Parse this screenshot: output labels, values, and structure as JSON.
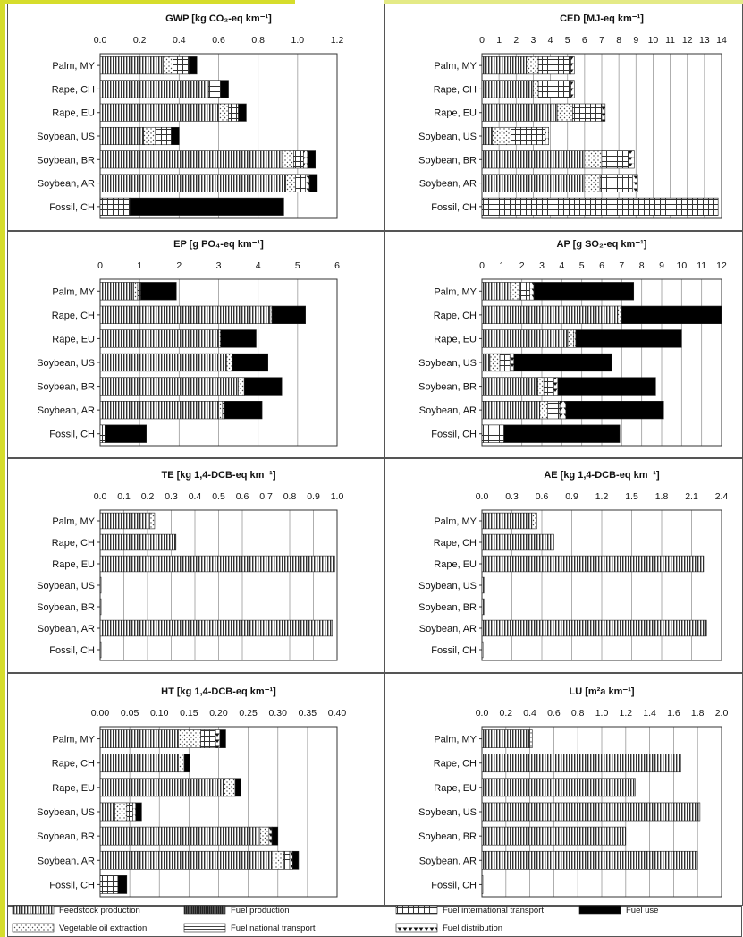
{
  "frame": {
    "accent": "#d6dd2b",
    "panel_border": "#555555",
    "grid": "#9a9a9a"
  },
  "patterns": {
    "feedstock": "vertical-hatch",
    "vegoil": "dots",
    "fuelprod": "dense-hatch",
    "fuelnat": "horizontal-lines",
    "fuelint": "grid",
    "fueldist": "triangles",
    "fueluse": "solid"
  },
  "legend": [
    {
      "key": "feedstock",
      "label": "Feedstock production"
    },
    {
      "key": "vegoil",
      "label": "Vegetable oil extraction"
    },
    {
      "key": "fuelprod",
      "label": "Fuel production"
    },
    {
      "key": "fuelnat",
      "label": "Fuel national transport"
    },
    {
      "key": "fuelint",
      "label": "Fuel international transport"
    },
    {
      "key": "fueldist",
      "label": "Fuel distribution"
    },
    {
      "key": "fueluse",
      "label": "Fuel use"
    }
  ],
  "chart_data": [
    {
      "type": "bar",
      "title": "GWP [kg CO₂-eq km⁻¹]",
      "categories": [
        "Palm, MY",
        "Rape, CH",
        "Rape, EU",
        "Soybean, US",
        "Soybean, BR",
        "Soybean, AR",
        "Fossil, CH"
      ],
      "ticks": [
        "0.0",
        "0.2",
        "0.4",
        "0.6",
        "0.8",
        "1.0",
        "1.2"
      ],
      "xlim": [
        0,
        1.2
      ],
      "stacks": [
        [
          [
            "feedstock",
            0.32
          ],
          [
            "vegoil",
            0.05
          ],
          [
            "fuelint",
            0.08
          ],
          [
            "fueluse",
            0.04
          ]
        ],
        [
          [
            "feedstock",
            0.55
          ],
          [
            "fuelint",
            0.06
          ],
          [
            "fueluse",
            0.04
          ]
        ],
        [
          [
            "feedstock",
            0.6
          ],
          [
            "vegoil",
            0.05
          ],
          [
            "fuelint",
            0.05
          ],
          [
            "fueluse",
            0.04
          ]
        ],
        [
          [
            "feedstock",
            0.22
          ],
          [
            "vegoil",
            0.06
          ],
          [
            "fuelint",
            0.08
          ],
          [
            "fueluse",
            0.04
          ]
        ],
        [
          [
            "feedstock",
            0.92
          ],
          [
            "vegoil",
            0.06
          ],
          [
            "fuelint",
            0.05
          ],
          [
            "fueldist",
            0.02
          ],
          [
            "fueluse",
            0.04
          ]
        ],
        [
          [
            "feedstock",
            0.94
          ],
          [
            "vegoil",
            0.05
          ],
          [
            "fuelint",
            0.05
          ],
          [
            "fueldist",
            0.02
          ],
          [
            "fueluse",
            0.04
          ]
        ],
        [
          [
            "fuelint",
            0.15
          ],
          [
            "fueluse",
            0.78
          ]
        ]
      ]
    },
    {
      "type": "bar",
      "title": "CED  [MJ-eq km⁻¹]",
      "categories": [
        "Palm, MY",
        "Rape, CH",
        "Rape, EU",
        "Soybean, US",
        "Soybean, BR",
        "Soybean, AR",
        "Fossil, CH"
      ],
      "ticks": [
        "0",
        "1",
        "2",
        "3",
        "4",
        "5",
        "6",
        "7",
        "8",
        "9",
        "10",
        "11",
        "12",
        "13",
        "14"
      ],
      "xlim": [
        0,
        14
      ],
      "stacks": [
        [
          [
            "feedstock",
            2.6
          ],
          [
            "vegoil",
            0.7
          ],
          [
            "fuelint",
            1.9
          ],
          [
            "fueldist",
            0.2
          ]
        ],
        [
          [
            "feedstock",
            3.0
          ],
          [
            "vegoil",
            0.3
          ],
          [
            "fuelint",
            1.9
          ],
          [
            "fueldist",
            0.2
          ]
        ],
        [
          [
            "feedstock",
            4.4
          ],
          [
            "vegoil",
            0.9
          ],
          [
            "fuelint",
            1.7
          ],
          [
            "fueldist",
            0.2
          ]
        ],
        [
          [
            "feedstock",
            0.6
          ],
          [
            "vegoil",
            1.1
          ],
          [
            "fuelint",
            2.0
          ],
          [
            "fueldist",
            0.2
          ]
        ],
        [
          [
            "feedstock",
            6.0
          ],
          [
            "vegoil",
            1.0
          ],
          [
            "fuelint",
            1.6
          ],
          [
            "fueldist",
            0.3
          ]
        ],
        [
          [
            "feedstock",
            6.0
          ],
          [
            "vegoil",
            0.9
          ],
          [
            "fuelint",
            1.9
          ],
          [
            "fueldist",
            0.3
          ]
        ],
        [
          [
            "fuelint",
            13.8
          ]
        ]
      ]
    },
    {
      "type": "bar",
      "title": "EP [g PO₄-eq km⁻¹]",
      "categories": [
        "Palm, MY",
        "Rape, CH",
        "Rape, EU",
        "Soybean, US",
        "Soybean, BR",
        "Soybean, AR",
        "Fossil, CH"
      ],
      "ticks": [
        "0",
        "1",
        "2",
        "3",
        "4",
        "5",
        "6"
      ],
      "xlim": [
        0,
        6
      ],
      "stacks": [
        [
          [
            "feedstock",
            0.85
          ],
          [
            "vegoil",
            0.1
          ],
          [
            "fuelint",
            0.08
          ],
          [
            "fueluse",
            0.9
          ]
        ],
        [
          [
            "feedstock",
            4.3
          ],
          [
            "vegoil",
            0.05
          ],
          [
            "fueluse",
            0.85
          ]
        ],
        [
          [
            "feedstock",
            3.0
          ],
          [
            "vegoil",
            0.05
          ],
          [
            "fueluse",
            0.9
          ]
        ],
        [
          [
            "feedstock",
            3.2
          ],
          [
            "vegoil",
            0.15
          ],
          [
            "fueluse",
            0.9
          ]
        ],
        [
          [
            "feedstock",
            3.5
          ],
          [
            "vegoil",
            0.15
          ],
          [
            "fueluse",
            0.95
          ]
        ],
        [
          [
            "feedstock",
            3.0
          ],
          [
            "vegoil",
            0.1
          ],
          [
            "fuelint",
            0.05
          ],
          [
            "fueluse",
            0.95
          ]
        ],
        [
          [
            "fuelint",
            0.12
          ],
          [
            "fueluse",
            1.05
          ]
        ]
      ]
    },
    {
      "type": "bar",
      "title": "AP [g SO₂-eq km⁻¹]",
      "categories": [
        "Palm, MY",
        "Rape, CH",
        "Rape, EU",
        "Soybean, US",
        "Soybean, BR",
        "Soybean, AR",
        "Fossil, CH"
      ],
      "ticks": [
        "0",
        "1",
        "2",
        "3",
        "4",
        "5",
        "6",
        "7",
        "8",
        "9",
        "10",
        "11",
        "12"
      ],
      "xlim": [
        0,
        12
      ],
      "stacks": [
        [
          [
            "feedstock",
            1.4
          ],
          [
            "vegoil",
            0.5
          ],
          [
            "fuelint",
            0.5
          ],
          [
            "fueldist",
            0.2
          ],
          [
            "fueluse",
            5.0
          ]
        ],
        [
          [
            "feedstock",
            6.8
          ],
          [
            "vegoil",
            0.2
          ],
          [
            "fueluse",
            5.0
          ]
        ],
        [
          [
            "feedstock",
            4.3
          ],
          [
            "vegoil",
            0.3
          ],
          [
            "fueldist",
            0.1
          ],
          [
            "fueluse",
            5.3
          ]
        ],
        [
          [
            "feedstock",
            0.4
          ],
          [
            "vegoil",
            0.5
          ],
          [
            "fuelint",
            0.5
          ],
          [
            "fueldist",
            0.2
          ],
          [
            "fueluse",
            4.9
          ]
        ],
        [
          [
            "feedstock",
            2.8
          ],
          [
            "vegoil",
            0.3
          ],
          [
            "fuelint",
            0.5
          ],
          [
            "fueldist",
            0.2
          ],
          [
            "fueluse",
            4.9
          ]
        ],
        [
          [
            "feedstock",
            2.9
          ],
          [
            "vegoil",
            0.4
          ],
          [
            "fuelint",
            0.6
          ],
          [
            "fueldist",
            0.3
          ],
          [
            "fueluse",
            4.9
          ]
        ],
        [
          [
            "fuelint",
            1.1
          ],
          [
            "fueluse",
            5.8
          ]
        ]
      ]
    },
    {
      "type": "bar",
      "title": "TE [kg 1,4-DCB-eq km⁻¹]",
      "categories": [
        "Palm, MY",
        "Rape, CH",
        "Rape, EU",
        "Soybean, US",
        "Soybean, BR",
        "Soybean, AR",
        "Fossil, CH"
      ],
      "ticks": [
        "0.0",
        "0.1",
        "0.2",
        "0.3",
        "0.4",
        "0.5",
        "0.6",
        "0.7",
        "0.8",
        "0.9",
        "1.0"
      ],
      "xlim": [
        0,
        1.0
      ],
      "stacks": [
        [
          [
            "feedstock",
            0.21
          ],
          [
            "vegoil",
            0.02
          ]
        ],
        [
          [
            "feedstock",
            0.32
          ]
        ],
        [
          [
            "feedstock",
            0.99
          ]
        ],
        [
          [
            "feedstock",
            0.004
          ]
        ],
        [
          [
            "feedstock",
            0.004
          ]
        ],
        [
          [
            "feedstock",
            0.98
          ]
        ],
        [
          [
            "feedstock",
            0.004
          ]
        ]
      ]
    },
    {
      "type": "bar",
      "title": "AE [kg 1,4-DCB-eq km⁻¹]",
      "categories": [
        "Palm, MY",
        "Rape, CH",
        "Rape, EU",
        "Soybean, US",
        "Soybean, BR",
        "Soybean, AR",
        "Fossil, CH"
      ],
      "ticks": [
        "0.0",
        "0.3",
        "0.6",
        "0.9",
        "1.2",
        "1.5",
        "1.8",
        "2.1",
        "2.4"
      ],
      "xlim": [
        0,
        2.4
      ],
      "stacks": [
        [
          [
            "feedstock",
            0.5
          ],
          [
            "vegoil",
            0.05
          ]
        ],
        [
          [
            "feedstock",
            0.72
          ]
        ],
        [
          [
            "feedstock",
            2.22
          ]
        ],
        [
          [
            "feedstock",
            0.02
          ]
        ],
        [
          [
            "feedstock",
            0.02
          ]
        ],
        [
          [
            "feedstock",
            2.25
          ]
        ],
        [
          [
            "feedstock",
            0.01
          ]
        ]
      ]
    },
    {
      "type": "bar",
      "title": "HT [kg 1,4-DCB-eq km⁻¹]",
      "categories": [
        "Palm, MY",
        "Rape, CH",
        "Rape, EU",
        "Soybean, US",
        "Soybean, BR",
        "Soybean, AR",
        "Fossil, CH"
      ],
      "ticks": [
        "0.00",
        "0.05",
        "0.10",
        "0.15",
        "0.20",
        "0.25",
        "0.30",
        "0.35",
        "0.40"
      ],
      "xlim": [
        0,
        0.4
      ],
      "stacks": [
        [
          [
            "feedstock",
            0.132
          ],
          [
            "vegoil",
            0.038
          ],
          [
            "fuelint",
            0.025
          ],
          [
            "fueldist",
            0.007
          ],
          [
            "fueluse",
            0.01
          ]
        ],
        [
          [
            "feedstock",
            0.132
          ],
          [
            "vegoil",
            0.01
          ],
          [
            "fueluse",
            0.01
          ]
        ],
        [
          [
            "feedstock",
            0.208
          ],
          [
            "vegoil",
            0.02
          ],
          [
            "fueluse",
            0.01
          ]
        ],
        [
          [
            "feedstock",
            0.025
          ],
          [
            "vegoil",
            0.02
          ],
          [
            "fuelint",
            0.01
          ],
          [
            "fueldist",
            0.005
          ],
          [
            "fueluse",
            0.01
          ]
        ],
        [
          [
            "feedstock",
            0.27
          ],
          [
            "vegoil",
            0.015
          ],
          [
            "fueldist",
            0.005
          ],
          [
            "fueluse",
            0.01
          ]
        ],
        [
          [
            "feedstock",
            0.29
          ],
          [
            "vegoil",
            0.02
          ],
          [
            "fuelint",
            0.01
          ],
          [
            "fueldist",
            0.005
          ],
          [
            "fueluse",
            0.01
          ]
        ],
        [
          [
            "fuelint",
            0.03
          ],
          [
            "fueluse",
            0.015
          ]
        ]
      ]
    },
    {
      "type": "bar",
      "title": "LU [m²a km⁻¹]",
      "categories": [
        "Palm, MY",
        "Rape, CH",
        "Rape, EU",
        "Soybean, US",
        "Soybean, BR",
        "Soybean, AR",
        "Fossil, CH"
      ],
      "ticks": [
        "0.0",
        "0.2",
        "0.4",
        "0.6",
        "0.8",
        "1.0",
        "1.2",
        "1.4",
        "1.6",
        "1.8",
        "2.0"
      ],
      "xlim": [
        0,
        2.0
      ],
      "stacks": [
        [
          [
            "feedstock",
            0.4
          ],
          [
            "vegoil",
            0.02
          ]
        ],
        [
          [
            "feedstock",
            1.66
          ]
        ],
        [
          [
            "feedstock",
            1.28
          ]
        ],
        [
          [
            "feedstock",
            1.82
          ]
        ],
        [
          [
            "feedstock",
            1.2
          ]
        ],
        [
          [
            "feedstock",
            1.8
          ]
        ],
        [
          [
            "feedstock",
            0.005
          ]
        ]
      ]
    }
  ]
}
